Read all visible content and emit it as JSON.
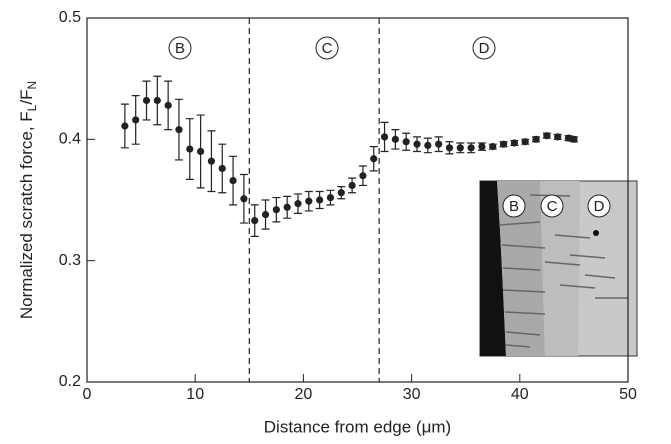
{
  "chart_data": {
    "type": "scatter",
    "xlabel": "Distance from edge (μm)",
    "ylabel_parts": [
      "Normalized scratch force, F",
      "L",
      "/F",
      "N"
    ],
    "x": [
      3.5,
      4.5,
      5.5,
      6.5,
      7.5,
      8.5,
      9.5,
      10.5,
      11.5,
      12.5,
      13.5,
      14.5,
      15.5,
      16.5,
      17.5,
      18.5,
      19.5,
      20.5,
      21.5,
      22.5,
      23.5,
      24.5,
      25.5,
      26.5,
      27.5,
      28.5,
      29.5,
      30.5,
      31.5,
      32.5,
      33.5,
      34.5,
      35.5,
      36.5,
      37.5,
      38.5,
      39.5,
      40.5,
      41.5,
      42.5,
      43.5,
      44.5,
      45
    ],
    "values": [
      0.411,
      0.416,
      0.432,
      0.432,
      0.428,
      0.408,
      0.392,
      0.39,
      0.382,
      0.376,
      0.366,
      0.351,
      0.333,
      0.338,
      0.342,
      0.344,
      0.347,
      0.349,
      0.35,
      0.352,
      0.356,
      0.362,
      0.37,
      0.384,
      0.402,
      0.4,
      0.398,
      0.396,
      0.395,
      0.396,
      0.393,
      0.393,
      0.393,
      0.394,
      0.394,
      0.396,
      0.397,
      0.398,
      0.4,
      0.403,
      0.402,
      0.401,
      0.4
    ],
    "errors": [
      0.018,
      0.02,
      0.016,
      0.02,
      0.02,
      0.025,
      0.025,
      0.03,
      0.025,
      0.02,
      0.02,
      0.02,
      0.013,
      0.012,
      0.01,
      0.009,
      0.008,
      0.008,
      0.007,
      0.006,
      0.005,
      0.006,
      0.008,
      0.01,
      0.012,
      0.008,
      0.007,
      0.006,
      0.006,
      0.006,
      0.005,
      0.004,
      0.004,
      0.003,
      0.002,
      0.002,
      0.002,
      0.002,
      0.002,
      0.002,
      0.002,
      0.002,
      0.002
    ],
    "color": "#222222",
    "xlim": [
      0,
      50
    ],
    "xticks": [
      0,
      10,
      20,
      30,
      40,
      50
    ],
    "ylim": [
      0.2,
      0.5
    ],
    "yticks": [
      0.2,
      0.3,
      0.4,
      0.5
    ],
    "vlines": [
      15,
      27
    ],
    "region_labels": [
      "B",
      "C",
      "D"
    ],
    "inset_labels": [
      "B",
      "C",
      "D"
    ]
  }
}
